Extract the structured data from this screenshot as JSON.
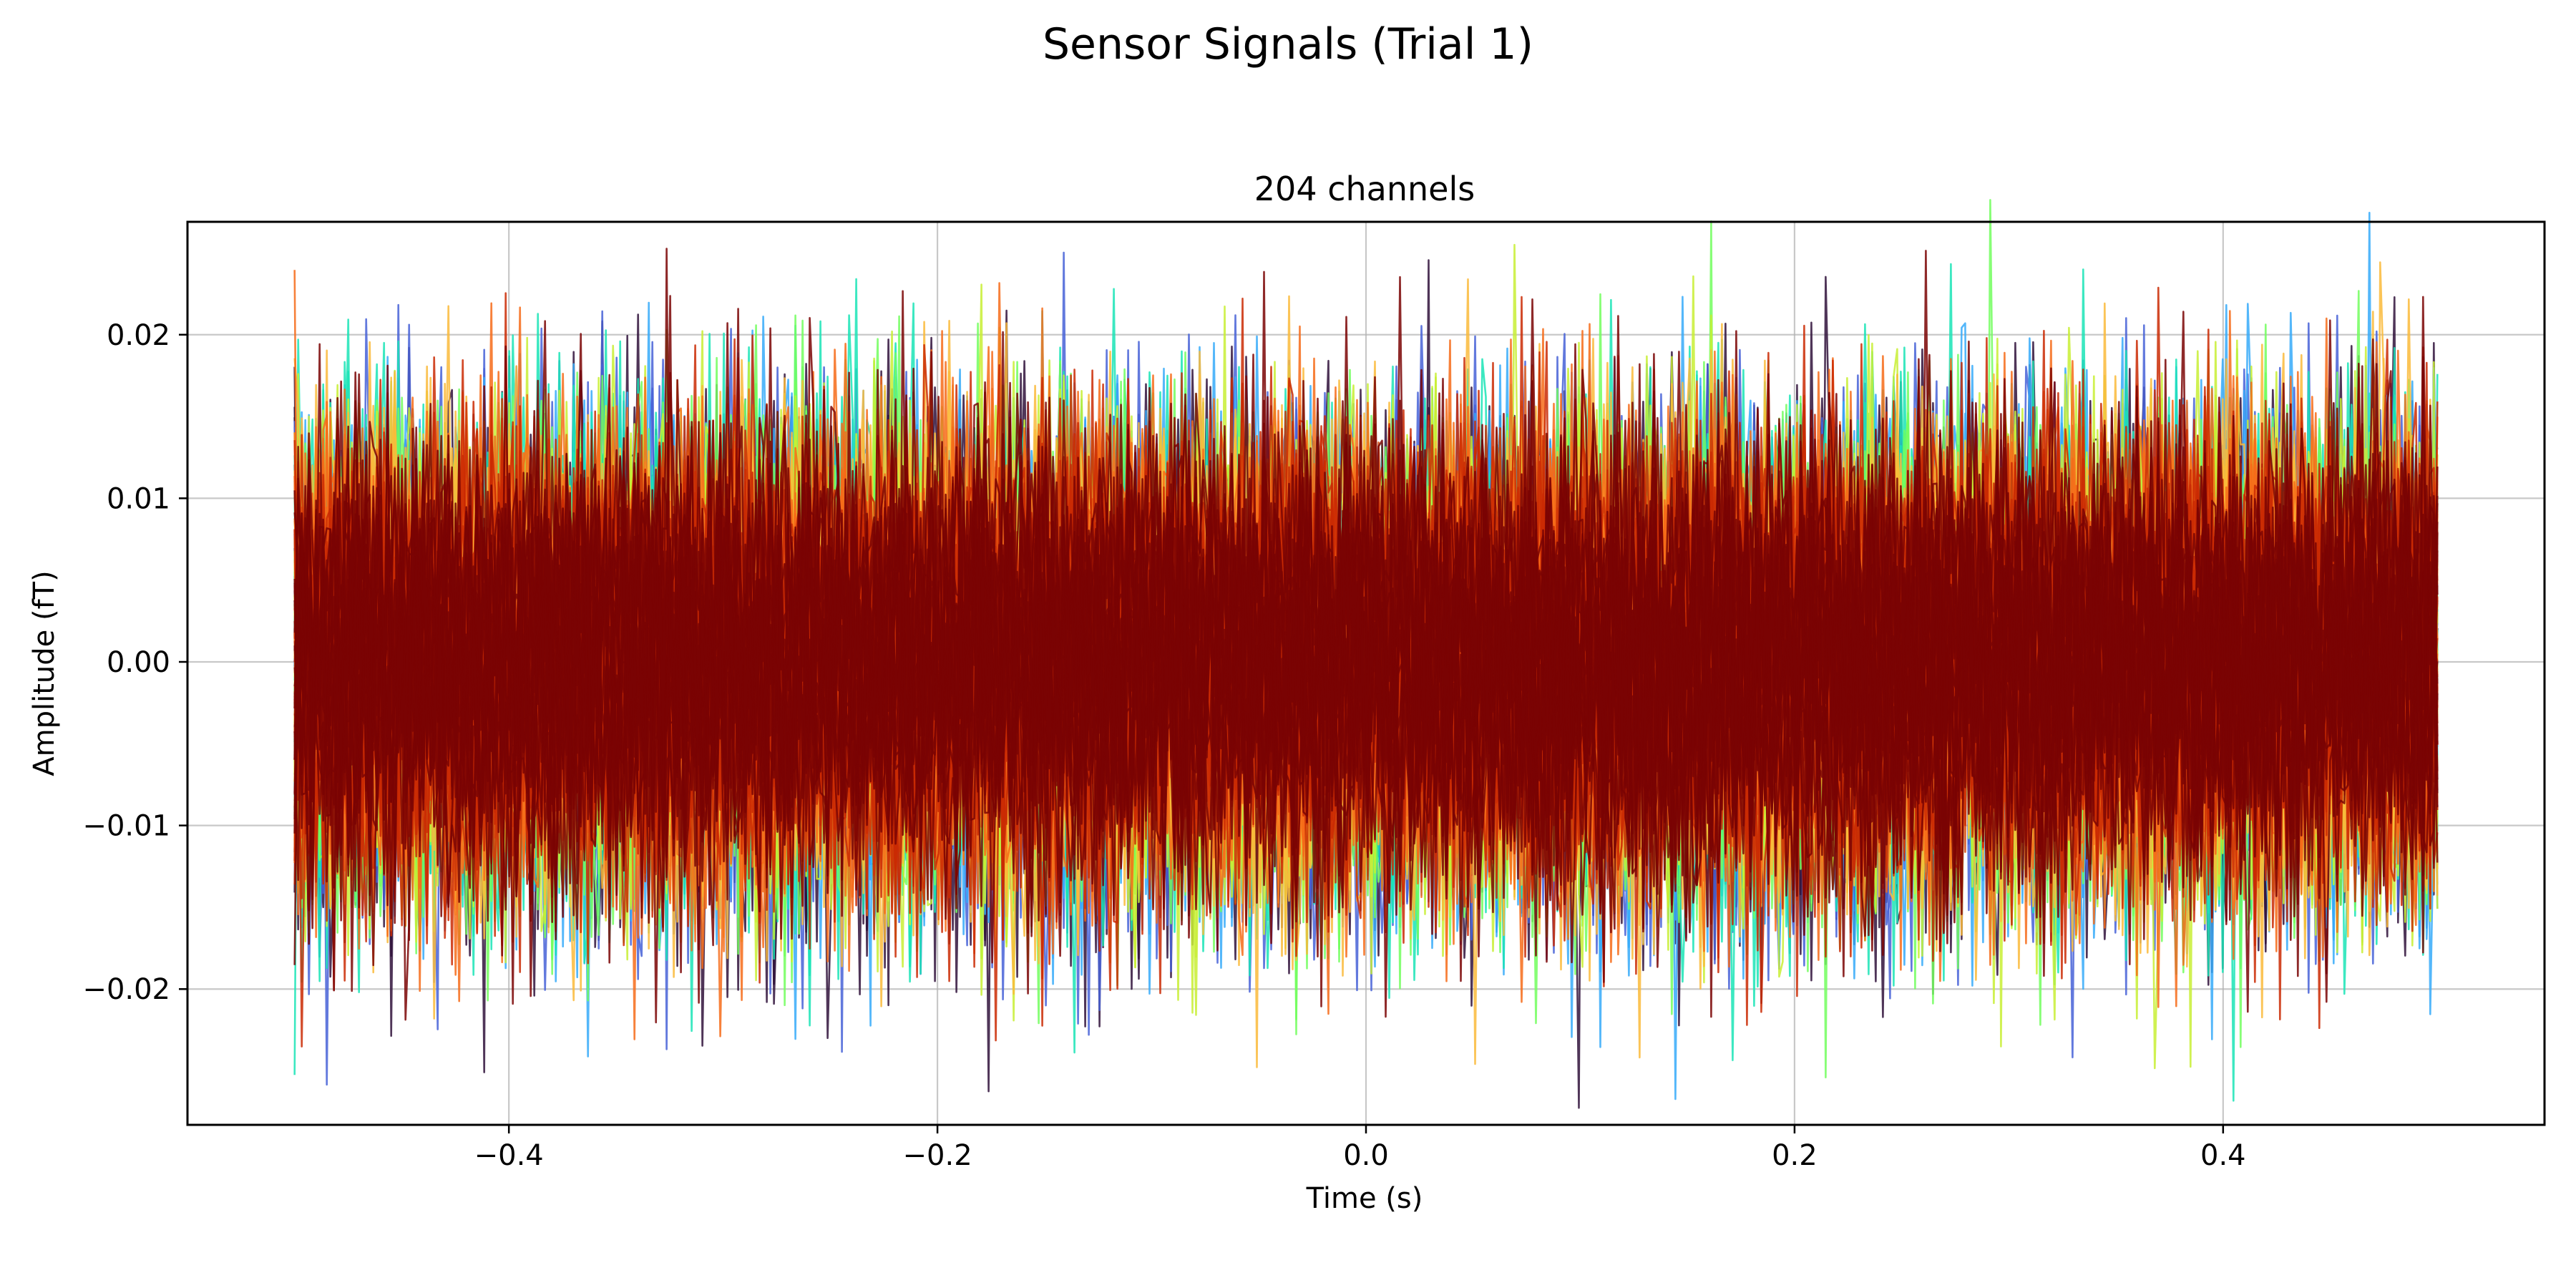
{
  "figure": {
    "suptitle": "Sensor Signals  (Trial 1)"
  },
  "chart_data": {
    "type": "line",
    "title": "204 channels",
    "xlabel": "Time (s)",
    "ylabel": "Amplitude (fT)",
    "x_range": [
      -0.5,
      0.5
    ],
    "xlim": [
      -0.55,
      0.55
    ],
    "ylim": [
      -0.0283,
      0.0269
    ],
    "x_ticks": [
      -0.4,
      -0.2,
      0.0,
      0.2,
      0.4
    ],
    "x_tick_labels": [
      "−0.4",
      "−0.2",
      "0.0",
      "0.2",
      "0.4"
    ],
    "y_ticks": [
      -0.02,
      -0.01,
      0.0,
      0.01,
      0.02
    ],
    "y_tick_labels": [
      "−0.02",
      "−0.01",
      "0.00",
      "0.01",
      "0.02"
    ],
    "grid": true,
    "legend": "none",
    "n_channels": 204,
    "noise_amplitude_sd": 0.0065,
    "colormap": [
      "#30123b",
      "#4662d7",
      "#36aaf9",
      "#1ae4b6",
      "#72fe5e",
      "#c8ef34",
      "#faba39",
      "#f66b19",
      "#ca2a04",
      "#7a0403"
    ]
  }
}
